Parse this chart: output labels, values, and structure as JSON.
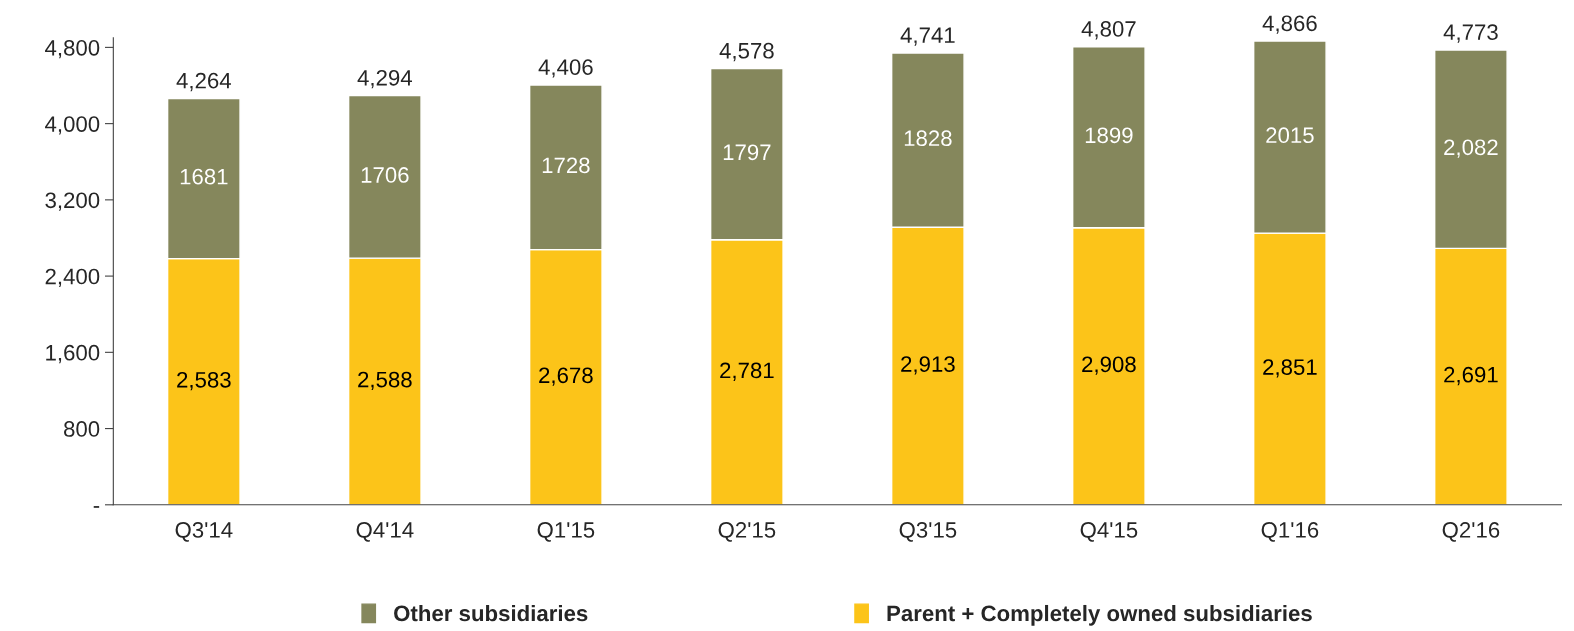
{
  "chart_data": {
    "type": "bar",
    "stacked": true,
    "categories": [
      "Q3'14",
      "Q4'14",
      "Q1'15",
      "Q2'15",
      "Q3'15",
      "Q4'15",
      "Q1'16",
      "Q2'16"
    ],
    "series": [
      {
        "name": "Parent + Completely owned subsidiaries",
        "color": "#fcc419",
        "values": [
          2583,
          2588,
          2678,
          2781,
          2913,
          2908,
          2851,
          2691
        ],
        "value_labels": [
          "2,583",
          "2,588",
          "2,678",
          "2,781",
          "2,913",
          "2,908",
          "2,851",
          "2,691"
        ]
      },
      {
        "name": "Other subsidiaries",
        "color": "#85875c",
        "values": [
          1681,
          1706,
          1728,
          1797,
          1828,
          1899,
          2015,
          2082
        ],
        "value_labels": [
          "1681",
          "1706",
          "1728",
          "1797",
          "1828",
          "1899",
          "2015",
          "2,082"
        ]
      }
    ],
    "totals": [
      "4,264",
      "4,294",
      "4,406",
      "4,578",
      "4,741",
      "4,807",
      "4,866",
      "4,773"
    ],
    "ylim": [
      0,
      4900
    ],
    "yticks": [
      {
        "value": 0,
        "label": "-"
      },
      {
        "value": 800,
        "label": "800"
      },
      {
        "value": 1600,
        "label": "1,600"
      },
      {
        "value": 2400,
        "label": "2,400"
      },
      {
        "value": 3200,
        "label": "3,200"
      },
      {
        "value": 4000,
        "label": "4,000"
      },
      {
        "value": 4800,
        "label": "4,800"
      }
    ],
    "grid": false,
    "legend": "bottom"
  }
}
